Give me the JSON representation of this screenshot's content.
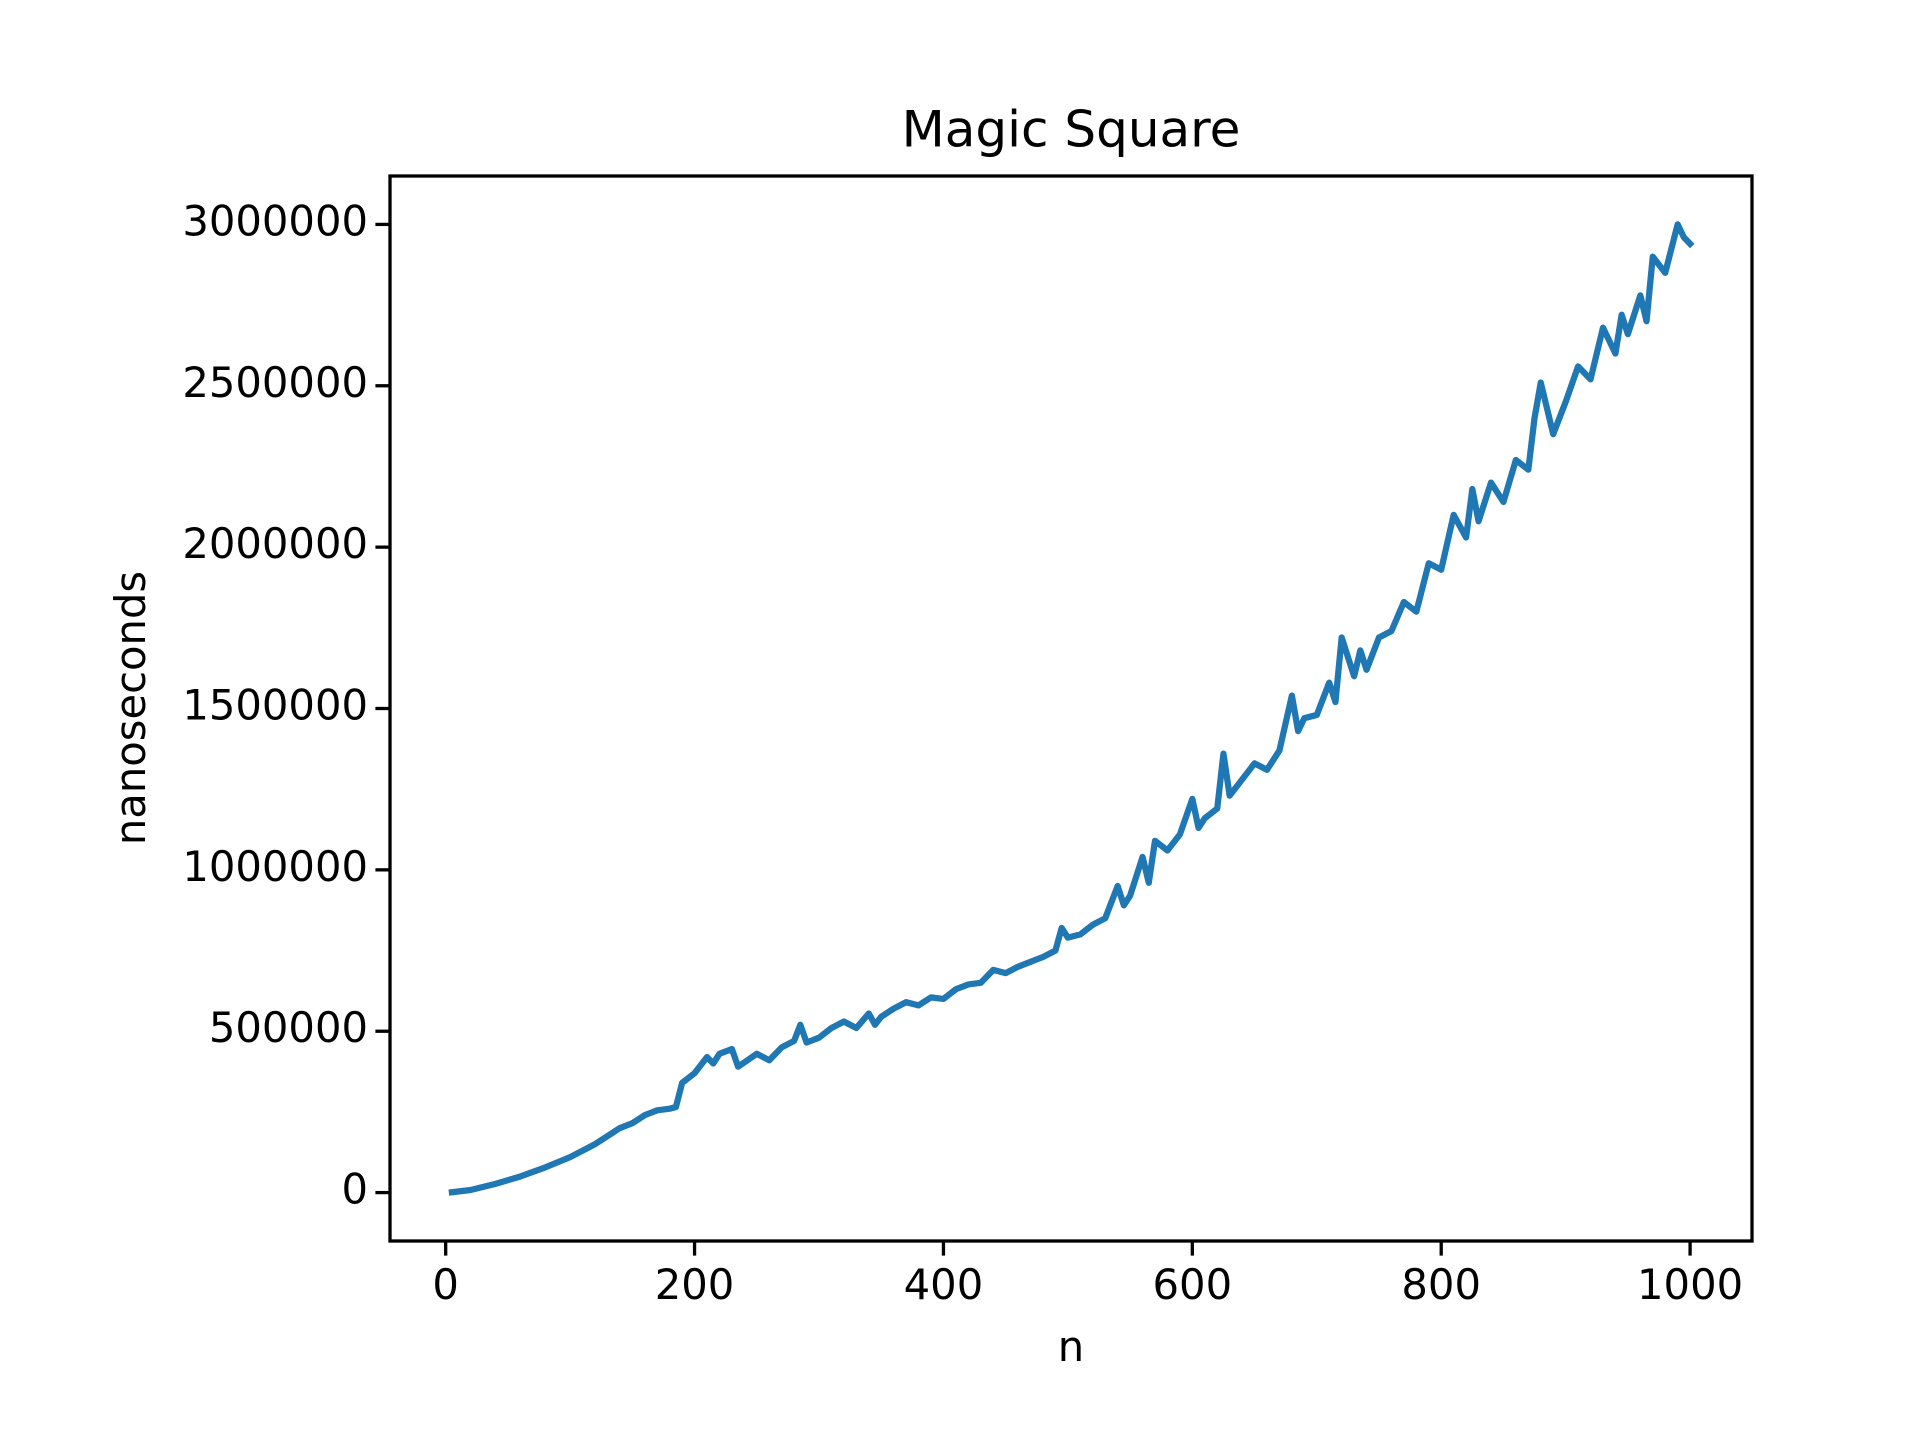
{
  "chart_data": {
    "type": "line",
    "title": "Magic Square",
    "x_label": "n",
    "y_label": "nanoseconds",
    "x": [
      5,
      20,
      40,
      60,
      80,
      100,
      120,
      130,
      140,
      150,
      160,
      170,
      180,
      185,
      190,
      200,
      210,
      215,
      220,
      230,
      235,
      250,
      260,
      270,
      280,
      285,
      290,
      300,
      310,
      320,
      330,
      340,
      345,
      350,
      360,
      370,
      380,
      390,
      400,
      410,
      420,
      430,
      440,
      450,
      460,
      470,
      480,
      490,
      495,
      500,
      510,
      520,
      530,
      540,
      545,
      550,
      560,
      565,
      570,
      580,
      590,
      600,
      605,
      610,
      620,
      625,
      630,
      640,
      650,
      660,
      670,
      680,
      685,
      690,
      700,
      710,
      715,
      720,
      730,
      735,
      740,
      750,
      760,
      770,
      780,
      790,
      800,
      810,
      820,
      825,
      830,
      840,
      850,
      860,
      870,
      875,
      880,
      890,
      900,
      910,
      920,
      930,
      940,
      945,
      950,
      960,
      965,
      970,
      980,
      990,
      995,
      1000
    ],
    "series": [
      {
        "name": "nanoseconds",
        "color": "#1f77b4",
        "values": [
          1000,
          8000,
          27000,
          50000,
          78000,
          110000,
          150000,
          175000,
          200000,
          215000,
          240000,
          255000,
          260000,
          265000,
          340000,
          370000,
          420000,
          400000,
          430000,
          445000,
          390000,
          430000,
          410000,
          450000,
          470000,
          520000,
          465000,
          480000,
          510000,
          530000,
          510000,
          555000,
          520000,
          545000,
          570000,
          590000,
          580000,
          605000,
          600000,
          630000,
          645000,
          650000,
          690000,
          680000,
          700000,
          715000,
          730000,
          750000,
          820000,
          790000,
          800000,
          830000,
          850000,
          950000,
          890000,
          920000,
          1040000,
          960000,
          1090000,
          1060000,
          1110000,
          1220000,
          1130000,
          1160000,
          1190000,
          1360000,
          1230000,
          1280000,
          1330000,
          1310000,
          1370000,
          1540000,
          1430000,
          1470000,
          1480000,
          1580000,
          1520000,
          1720000,
          1600000,
          1680000,
          1620000,
          1720000,
          1740000,
          1830000,
          1800000,
          1950000,
          1930000,
          2100000,
          2030000,
          2180000,
          2080000,
          2200000,
          2140000,
          2270000,
          2240000,
          2400000,
          2510000,
          2350000,
          2450000,
          2560000,
          2520000,
          2680000,
          2600000,
          2720000,
          2660000,
          2780000,
          2700000,
          2900000,
          2850000,
          3000000,
          2960000,
          2940000
        ]
      }
    ],
    "xlim": [
      -44.75,
      1049.75
    ],
    "xticks": [
      0,
      200,
      400,
      600,
      800,
      1000
    ],
    "ylim": [
      -150000,
      3150000
    ],
    "yticks": [
      0,
      500000,
      1000000,
      1500000,
      2000000,
      2500000,
      3000000
    ]
  }
}
